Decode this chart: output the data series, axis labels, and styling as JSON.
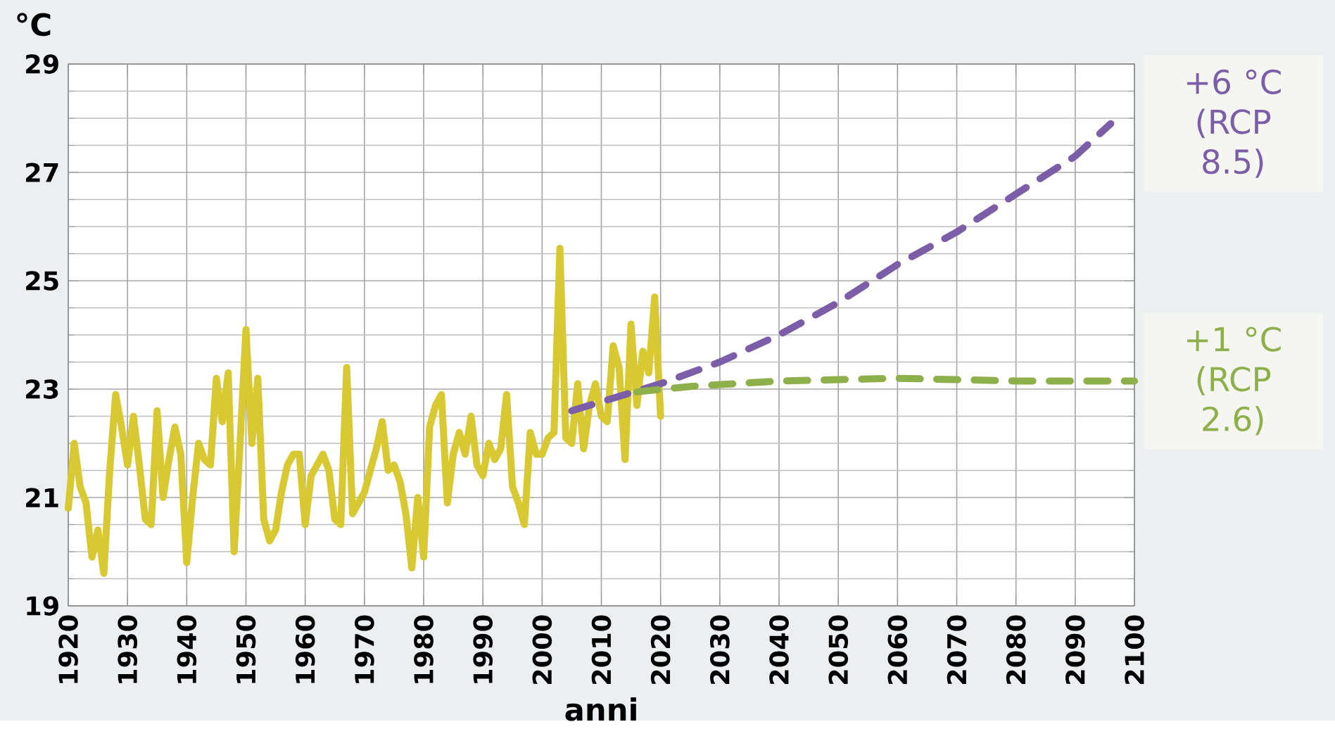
{
  "chart_data": {
    "type": "line",
    "xlabel": "anni",
    "ylabel": "°C",
    "xlim": [
      1920,
      2100
    ],
    "xticks": [
      1920,
      1930,
      1940,
      1950,
      1960,
      1970,
      1980,
      1990,
      2000,
      2010,
      2020,
      2030,
      2040,
      2050,
      2060,
      2070,
      2080,
      2090,
      2100
    ],
    "ylim": [
      19,
      29
    ],
    "yticks": [
      19,
      21,
      23,
      25,
      27,
      29
    ],
    "grid": true,
    "marker": "none",
    "series": [
      {
        "color": "#d8c832",
        "line_style": "solid",
        "x": [
          1920,
          1921,
          1922,
          1923,
          1924,
          1925,
          1926,
          1927,
          1928,
          1929,
          1930,
          1931,
          1932,
          1933,
          1934,
          1935,
          1936,
          1937,
          1938,
          1939,
          1940,
          1941,
          1942,
          1943,
          1944,
          1945,
          1946,
          1947,
          1948,
          1949,
          1950,
          1951,
          1952,
          1953,
          1954,
          1955,
          1956,
          1957,
          1958,
          1959,
          1960,
          1961,
          1962,
          1963,
          1964,
          1965,
          1966,
          1967,
          1968,
          1969,
          1970,
          1971,
          1972,
          1973,
          1974,
          1975,
          1976,
          1977,
          1978,
          1979,
          1980,
          1981,
          1982,
          1983,
          1984,
          1985,
          1986,
          1987,
          1988,
          1989,
          1990,
          1991,
          1992,
          1993,
          1994,
          1995,
          1996,
          1997,
          1998,
          1999,
          2000,
          2001,
          2002,
          2003,
          2004,
          2005,
          2006,
          2007,
          2008,
          2009,
          2010,
          2011,
          2012,
          2013,
          2014,
          2015,
          2016,
          2017,
          2018,
          2019,
          2020
        ],
        "values": [
          20.8,
          22.0,
          21.2,
          20.9,
          19.9,
          20.4,
          19.6,
          21.5,
          22.9,
          22.3,
          21.6,
          22.5,
          21.6,
          20.6,
          20.5,
          22.6,
          21.0,
          21.7,
          22.3,
          21.8,
          19.8,
          21.0,
          22.0,
          21.7,
          21.6,
          23.2,
          22.4,
          23.3,
          20.0,
          22.0,
          24.1,
          22.0,
          23.2,
          20.6,
          20.2,
          20.4,
          21.1,
          21.6,
          21.8,
          21.8,
          20.5,
          21.4,
          21.6,
          21.8,
          21.5,
          20.6,
          20.5,
          23.4,
          20.7,
          20.9,
          21.1,
          21.5,
          21.9,
          22.4,
          21.5,
          21.6,
          21.3,
          20.7,
          19.7,
          21.0,
          19.9,
          22.3,
          22.7,
          22.9,
          20.9,
          21.8,
          22.2,
          21.8,
          22.5,
          21.6,
          21.4,
          22.0,
          21.7,
          21.9,
          22.9,
          21.2,
          20.9,
          20.5,
          22.2,
          21.8,
          21.8,
          22.1,
          22.2,
          25.6,
          22.1,
          22.0,
          23.1,
          21.9,
          22.7,
          23.1,
          22.5,
          22.4,
          23.8,
          23.4,
          21.7,
          24.2,
          22.7,
          23.7,
          23.3,
          24.7,
          22.5
        ]
      },
      {
        "name": "+6 °C (RCP 8.5)",
        "color": "#7b5ea7",
        "line_style": "dashed",
        "x": [
          2005,
          2020,
          2030,
          2040,
          2050,
          2060,
          2070,
          2080,
          2090,
          2096
        ],
        "values": [
          22.6,
          23.1,
          23.5,
          24.0,
          24.6,
          25.3,
          25.9,
          26.6,
          27.3,
          27.9
        ]
      },
      {
        "name": "+1 °C (RCP 2.6)",
        "color": "#8db04b",
        "line_style": "dashed",
        "x": [
          2016,
          2025,
          2040,
          2060,
          2080,
          2100
        ],
        "values": [
          22.95,
          23.05,
          23.15,
          23.2,
          23.15,
          23.15
        ]
      }
    ]
  }
}
